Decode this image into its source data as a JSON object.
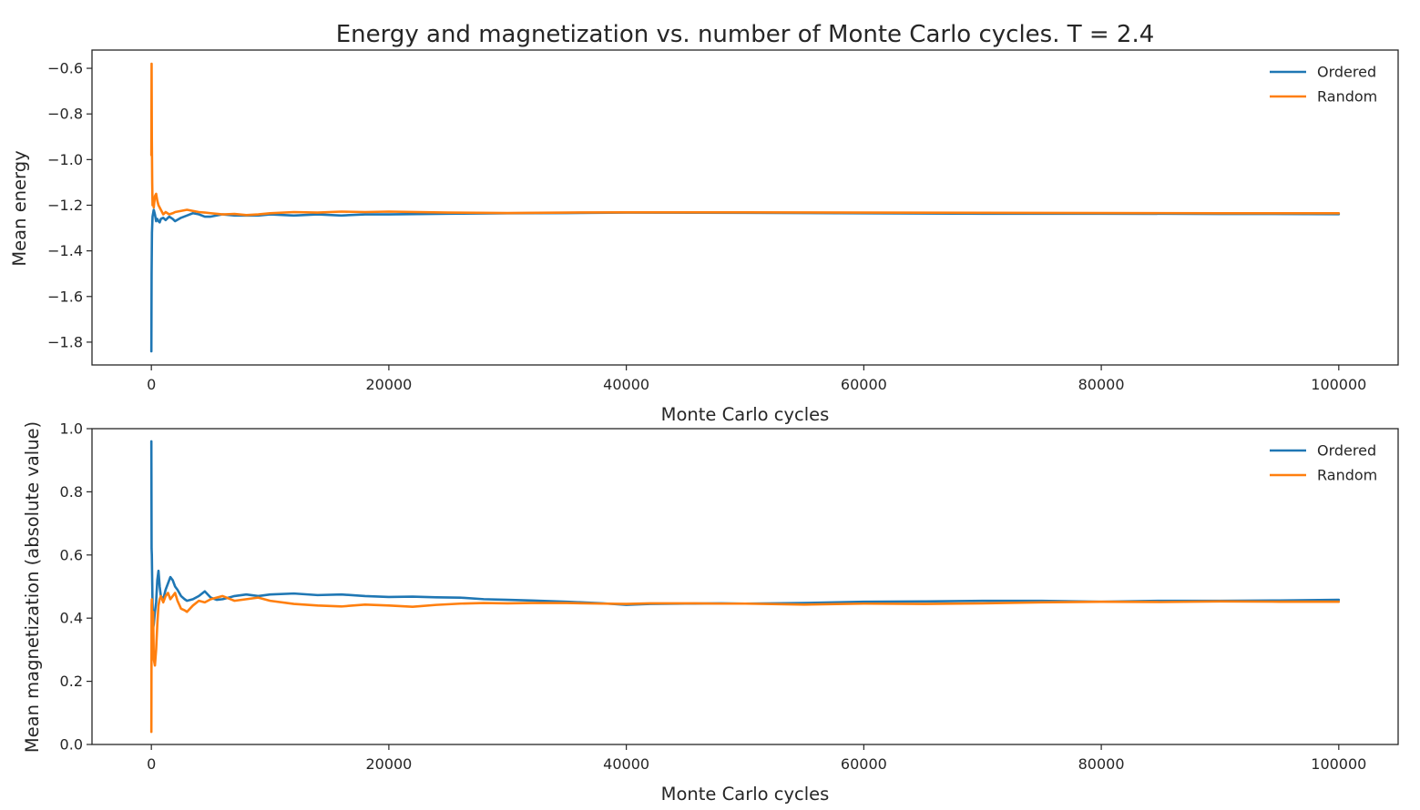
{
  "chart_data": [
    {
      "type": "line",
      "title": "Energy and magnetization vs. number of Monte Carlo cycles. T = 2.4",
      "xlabel": "Monte Carlo cycles",
      "ylabel": "Mean energy",
      "xlim": [
        -5000,
        105000
      ],
      "ylim": [
        -1.9,
        -0.52
      ],
      "xticks": [
        0,
        20000,
        40000,
        60000,
        80000,
        100000
      ],
      "xtick_labels": [
        "0",
        "20000",
        "40000",
        "60000",
        "80000",
        "100000"
      ],
      "yticks": [
        -1.8,
        -1.6,
        -1.4,
        -1.2,
        -1.0,
        -0.8,
        -0.6
      ],
      "ytick_labels": [
        "−1.8",
        "−1.6",
        "−1.4",
        "−1.2",
        "−1.0",
        "−0.8",
        "−0.6"
      ],
      "grid": false,
      "legend": "top-right",
      "series": [
        {
          "name": "Ordered",
          "color": "#1f77b4",
          "x": [
            0,
            20,
            50,
            100,
            200,
            300,
            400,
            500,
            600,
            700,
            800,
            1000,
            1200,
            1500,
            1800,
            2000,
            2500,
            3000,
            3500,
            4000,
            4500,
            5000,
            6000,
            7000,
            8000,
            9000,
            10000,
            12000,
            14000,
            16000,
            18000,
            20000,
            25000,
            30000,
            35000,
            40000,
            50000,
            60000,
            70000,
            80000,
            90000,
            100000
          ],
          "y": [
            -1.84,
            -1.5,
            -1.32,
            -1.25,
            -1.22,
            -1.24,
            -1.27,
            -1.26,
            -1.27,
            -1.275,
            -1.26,
            -1.255,
            -1.265,
            -1.25,
            -1.26,
            -1.27,
            -1.255,
            -1.245,
            -1.235,
            -1.24,
            -1.25,
            -1.25,
            -1.24,
            -1.245,
            -1.245,
            -1.245,
            -1.24,
            -1.245,
            -1.24,
            -1.245,
            -1.24,
            -1.24,
            -1.237,
            -1.235,
            -1.234,
            -1.232,
            -1.233,
            -1.235,
            -1.237,
            -1.237,
            -1.238,
            -1.239
          ]
        },
        {
          "name": "Random",
          "color": "#ff7f0e",
          "x": [
            0,
            20,
            40,
            70,
            100,
            150,
            200,
            300,
            400,
            500,
            600,
            800,
            1000,
            1200,
            1500,
            1800,
            2000,
            2500,
            3000,
            3500,
            4000,
            4500,
            5000,
            6000,
            7000,
            8000,
            9000,
            10000,
            12000,
            14000,
            16000,
            18000,
            20000,
            25000,
            30000,
            35000,
            40000,
            50000,
            60000,
            70000,
            80000,
            90000,
            100000
          ],
          "y": [
            -0.98,
            -0.58,
            -0.9,
            -1.1,
            -1.2,
            -1.17,
            -1.21,
            -1.16,
            -1.15,
            -1.18,
            -1.2,
            -1.22,
            -1.24,
            -1.23,
            -1.24,
            -1.235,
            -1.23,
            -1.225,
            -1.22,
            -1.225,
            -1.23,
            -1.232,
            -1.235,
            -1.24,
            -1.238,
            -1.243,
            -1.24,
            -1.235,
            -1.23,
            -1.232,
            -1.228,
            -1.23,
            -1.228,
            -1.232,
            -1.234,
            -1.232,
            -1.231,
            -1.231,
            -1.232,
            -1.233,
            -1.234,
            -1.235,
            -1.235
          ]
        }
      ]
    },
    {
      "type": "line",
      "xlabel": "Monte Carlo cycles",
      "ylabel": "Mean magnetization (absolute value)",
      "xlim": [
        -5000,
        105000
      ],
      "ylim": [
        0.0,
        1.0
      ],
      "xticks": [
        0,
        20000,
        40000,
        60000,
        80000,
        100000
      ],
      "xtick_labels": [
        "0",
        "20000",
        "40000",
        "60000",
        "80000",
        "100000"
      ],
      "yticks": [
        0.0,
        0.2,
        0.4,
        0.6,
        0.8,
        1.0
      ],
      "ytick_labels": [
        "0.0",
        "0.2",
        "0.4",
        "0.6",
        "0.8",
        "1.0"
      ],
      "grid": false,
      "legend": "top-right",
      "series": [
        {
          "name": "Ordered",
          "color": "#1f77b4",
          "x": [
            0,
            20,
            40,
            70,
            100,
            150,
            200,
            300,
            400,
            500,
            600,
            700,
            800,
            1000,
            1200,
            1400,
            1600,
            1800,
            2000,
            2200,
            2500,
            2800,
            3000,
            3500,
            4000,
            4500,
            5000,
            5500,
            6000,
            7000,
            8000,
            9000,
            10000,
            12000,
            14000,
            16000,
            18000,
            20000,
            22000,
            24000,
            26000,
            28000,
            30000,
            32000,
            35000,
            38000,
            40000,
            42000,
            45000,
            48000,
            50000,
            55000,
            60000,
            65000,
            70000,
            75000,
            80000,
            85000,
            90000,
            95000,
            100000
          ],
          "y": [
            0.96,
            0.62,
            0.6,
            0.52,
            0.44,
            0.37,
            0.38,
            0.42,
            0.45,
            0.52,
            0.55,
            0.5,
            0.47,
            0.46,
            0.49,
            0.51,
            0.53,
            0.52,
            0.5,
            0.49,
            0.47,
            0.46,
            0.455,
            0.46,
            0.47,
            0.485,
            0.465,
            0.458,
            0.46,
            0.47,
            0.475,
            0.47,
            0.475,
            0.478,
            0.473,
            0.475,
            0.47,
            0.467,
            0.468,
            0.466,
            0.465,
            0.46,
            0.458,
            0.456,
            0.452,
            0.447,
            0.442,
            0.445,
            0.446,
            0.447,
            0.446,
            0.448,
            0.452,
            0.453,
            0.455,
            0.455,
            0.452,
            0.455,
            0.455,
            0.456,
            0.458
          ]
        },
        {
          "name": "Random",
          "color": "#ff7f0e",
          "x": [
            0,
            20,
            40,
            70,
            100,
            150,
            200,
            300,
            400,
            500,
            600,
            700,
            800,
            1000,
            1200,
            1400,
            1600,
            1800,
            2000,
            2200,
            2500,
            2800,
            3000,
            3500,
            4000,
            4500,
            5000,
            5500,
            6000,
            7000,
            8000,
            9000,
            10000,
            12000,
            14000,
            16000,
            18000,
            20000,
            22000,
            24000,
            26000,
            28000,
            30000,
            32000,
            35000,
            38000,
            40000,
            42000,
            45000,
            48000,
            50000,
            55000,
            60000,
            65000,
            70000,
            75000,
            80000,
            85000,
            90000,
            95000,
            100000
          ],
          "y": [
            0.04,
            0.44,
            0.46,
            0.3,
            0.33,
            0.42,
            0.27,
            0.25,
            0.3,
            0.38,
            0.44,
            0.46,
            0.47,
            0.45,
            0.47,
            0.48,
            0.46,
            0.47,
            0.48,
            0.455,
            0.43,
            0.425,
            0.42,
            0.44,
            0.455,
            0.45,
            0.46,
            0.465,
            0.47,
            0.455,
            0.46,
            0.465,
            0.455,
            0.445,
            0.44,
            0.437,
            0.443,
            0.44,
            0.436,
            0.442,
            0.446,
            0.448,
            0.447,
            0.448,
            0.448,
            0.446,
            0.445,
            0.447,
            0.447,
            0.446,
            0.446,
            0.443,
            0.446,
            0.445,
            0.447,
            0.45,
            0.452,
            0.451,
            0.453,
            0.452,
            0.452
          ]
        }
      ]
    }
  ]
}
